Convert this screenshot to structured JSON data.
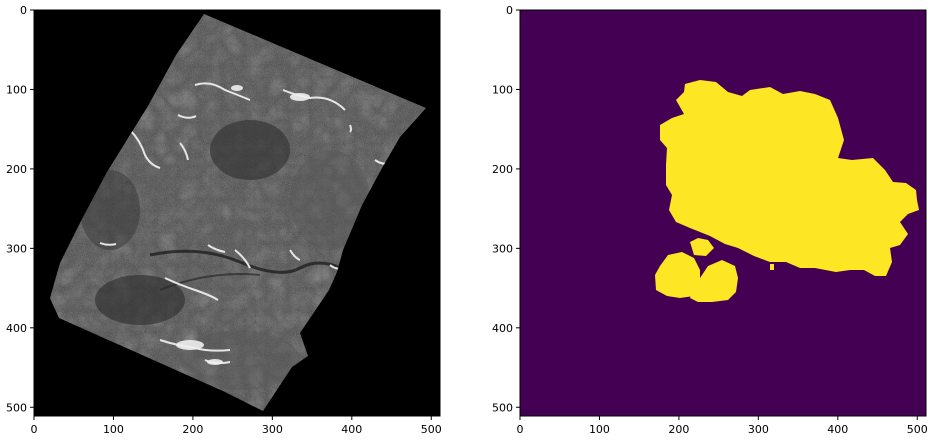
{
  "panels": [
    {
      "name": "satellite-image",
      "xticks": [
        "0",
        "100",
        "200",
        "300",
        "400",
        "500"
      ],
      "yticks": [
        "0",
        "100",
        "200",
        "300",
        "400",
        "500"
      ],
      "xlim": [
        0,
        511
      ],
      "ylim": [
        511,
        0
      ],
      "colormap": "gray",
      "background": "#000000"
    },
    {
      "name": "segmentation-mask",
      "xticks": [
        "0",
        "100",
        "200",
        "300",
        "400",
        "500"
      ],
      "yticks": [
        "0",
        "100",
        "200",
        "300",
        "400",
        "500"
      ],
      "xlim": [
        0,
        511
      ],
      "ylim": [
        511,
        0
      ],
      "colormap": "viridis",
      "background": "#440154",
      "mask_color": "#fde725"
    }
  ],
  "colors": {
    "figure_bg": "#ffffff",
    "terrain_dark": "#2a2a2a",
    "terrain_mid": "#4a4a4a",
    "terrain_light": "#6a6a6a",
    "highlight": "#e8e8e8",
    "mask_bg": "#440154",
    "mask_fg": "#fde725"
  }
}
